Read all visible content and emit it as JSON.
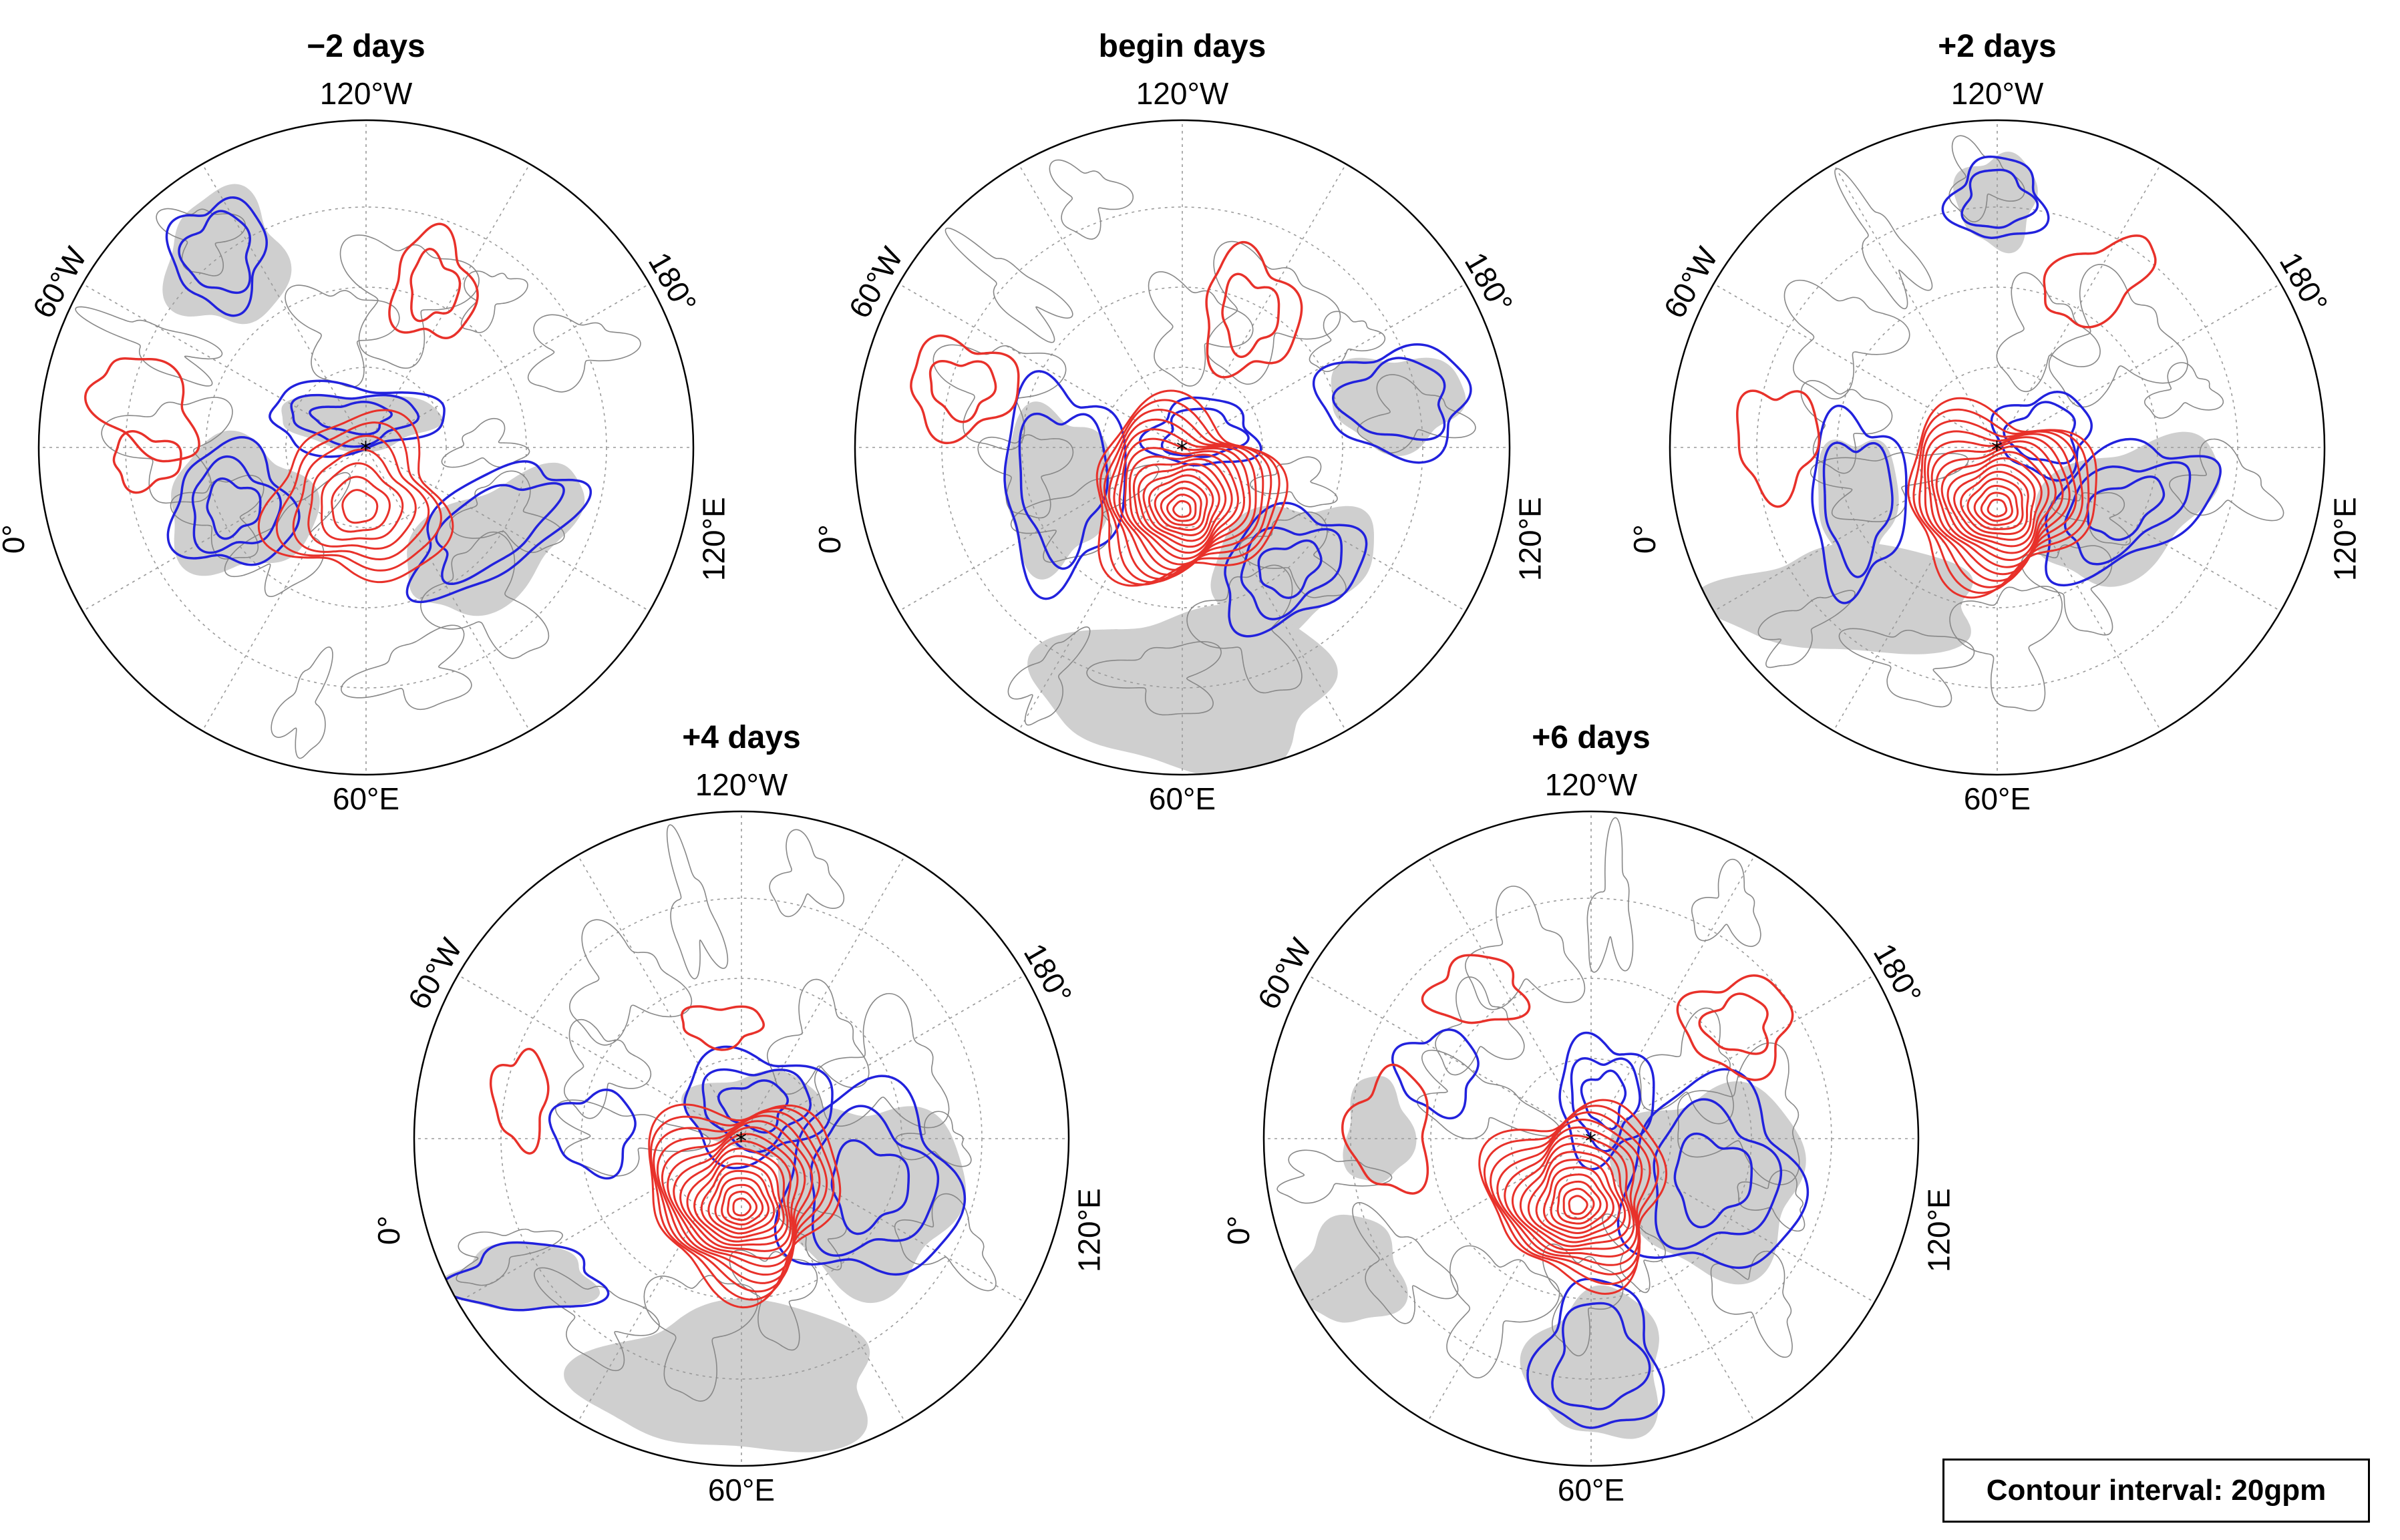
{
  "figure": {
    "panels": [
      {
        "title": "−2 days",
        "labels": {
          "top": "120°W",
          "bottom": "60°E",
          "upper_left": "60°W",
          "lower_left": "0°",
          "upper_right": "180°",
          "lower_right": "120°E"
        }
      },
      {
        "title": "begin days",
        "labels": {
          "top": "120°W",
          "bottom": "60°E",
          "upper_left": "60°W",
          "lower_left": "0°",
          "upper_right": "180°",
          "lower_right": "120°E"
        }
      },
      {
        "title": "+2 days",
        "labels": {
          "top": "120°W",
          "bottom": "60°E",
          "upper_left": "60°W",
          "lower_left": "0°",
          "upper_right": "180°",
          "lower_right": "120°E"
        }
      },
      {
        "title": "+4 days",
        "labels": {
          "top": "120°W",
          "bottom": "60°E",
          "upper_left": "60°W",
          "lower_left": "0°",
          "upper_right": "180°",
          "lower_right": "120°E"
        }
      },
      {
        "title": "+6 days",
        "labels": {
          "top": "120°W",
          "bottom": "60°E",
          "upper_left": "60°W",
          "lower_left": "0°",
          "upper_right": "180°",
          "lower_right": "120°E"
        }
      }
    ],
    "legend": {
      "text": "Contour interval: 20gpm"
    },
    "colors": {
      "positive_contour": "#e8312a",
      "negative_contour": "#2222dd",
      "significant_shading": "#cfcfcf",
      "coastline": "#888888",
      "grid": "#9a9a9a"
    }
  }
}
